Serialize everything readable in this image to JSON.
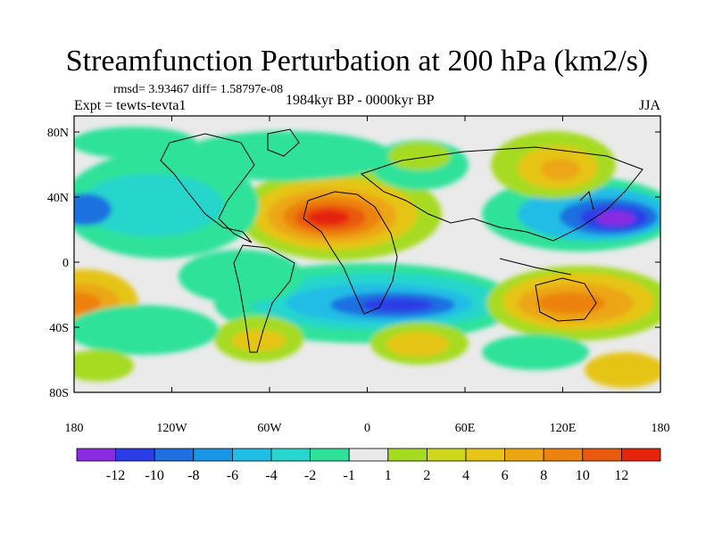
{
  "title": "Streamfunction Perturbation at 200 hPa (km2/s)",
  "stats": "rmsd= 3.93467 diff= 1.58797e-08",
  "left_label": "Expt = tewts-tevta1",
  "center_label": "1984kyr BP - 0000kyr BP",
  "right_label": "JJA",
  "lat_ticks": [
    "80N",
    "40N",
    "0",
    "40S",
    "80S"
  ],
  "lon_ticks": [
    "180",
    "120W",
    "60W",
    "0",
    "60E",
    "120E",
    "180"
  ],
  "colorbar": {
    "colors": [
      "#8a2be2",
      "#2a3de6",
      "#1f6fe0",
      "#1a96e6",
      "#22bde6",
      "#27d6cc",
      "#2ee29a",
      "#eaeaea",
      "#a6db22",
      "#cfd81b",
      "#e6c418",
      "#eca612",
      "#ec8210",
      "#ea5a0e",
      "#e6240c"
    ],
    "labels": [
      "-12",
      "-10",
      "-8",
      "-6",
      "-4",
      "-2",
      "-1",
      "1",
      "2",
      "4",
      "6",
      "8",
      "10",
      "12"
    ]
  }
}
